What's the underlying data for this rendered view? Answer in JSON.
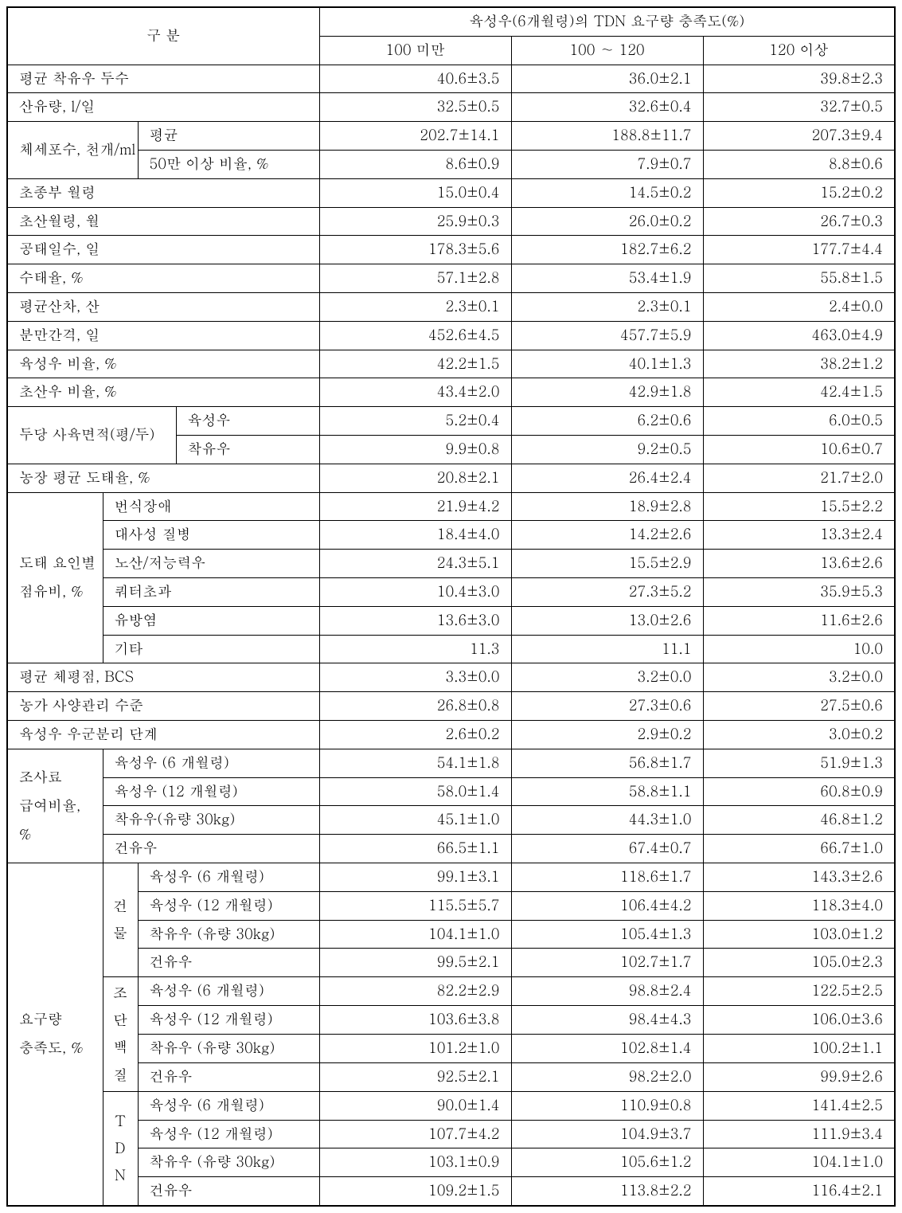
{
  "header": {
    "group_label": "구 분",
    "title": "육성우(6개월령)의 TDN 요구량 충족도(%)",
    "cols": [
      "100 미만",
      "100 ∼ 120",
      "120 이상"
    ]
  },
  "rows": [
    {
      "label": "평균 착유우 두수",
      "v": [
        "40.6±3.5",
        "36.0±2.1",
        "39.8±2.3"
      ]
    },
    {
      "label": "산유량, l/일",
      "v": [
        "32.5±0.5",
        "32.6±0.4",
        "32.7±0.5"
      ]
    }
  ],
  "scc": {
    "group": "체세포수, 천개/ml",
    "rows": [
      {
        "label": "평균",
        "v": [
          "202.7±14.1",
          "188.8±11.7",
          "207.3±9.4"
        ]
      },
      {
        "label": "50만 이상 비율, %",
        "v": [
          "8.6±0.9",
          "7.9±0.7",
          "8.8±0.6"
        ]
      }
    ]
  },
  "mid": [
    {
      "label": "초종부 월령",
      "v": [
        "15.0±0.4",
        "14.5±0.2",
        "15.2±0.2"
      ]
    },
    {
      "label": "초산월령, 월",
      "v": [
        "25.9±0.3",
        "26.0±0.2",
        "26.7±0.3"
      ]
    },
    {
      "label": "공태일수, 일",
      "v": [
        "178.3±5.6",
        "182.7±6.2",
        "177.7±4.4"
      ]
    },
    {
      "label": "수태율, %",
      "v": [
        "57.1±2.8",
        "53.4±1.9",
        "55.8±1.5"
      ]
    },
    {
      "label": "평균산차, 산",
      "v": [
        "2.3±0.1",
        "2.3±0.1",
        "2.4±0.0"
      ]
    },
    {
      "label": "분만간격, 일",
      "v": [
        "452.6±4.5",
        "457.7±5.9",
        "463.0±4.9"
      ]
    },
    {
      "label": "육성우 비율, %",
      "v": [
        "42.2±1.5",
        "40.1±1.3",
        "38.2±1.2"
      ]
    },
    {
      "label": "초산우 비율, %",
      "v": [
        "43.4±2.0",
        "42.9±1.8",
        "42.4±1.5"
      ]
    }
  ],
  "area": {
    "group": "두당 사육면적(평/두)",
    "rows": [
      {
        "label": "육성우",
        "v": [
          "5.2±0.4",
          "6.2±0.6",
          "6.0±0.5"
        ]
      },
      {
        "label": "착유우",
        "v": [
          "9.9±0.8",
          "9.2±0.5",
          "10.6±0.7"
        ]
      }
    ]
  },
  "cullrate": {
    "label": "농장 평균 도태율, %",
    "v": [
      "20.8±2.1",
      "26.4±2.4",
      "21.7±2.0"
    ]
  },
  "cull": {
    "group1": "도태 요인별",
    "group2": "점유비, %",
    "rows": [
      {
        "label": "번식장애",
        "v": [
          "21.9±4.2",
          "18.9±2.8",
          "15.5±2.2"
        ]
      },
      {
        "label": "대사성 질병",
        "v": [
          "18.4±4.0",
          "14.2±2.6",
          "13.3±2.4"
        ]
      },
      {
        "label": "노산/저능력우",
        "v": [
          "24.3±5.1",
          "15.5±2.9",
          "13.6±2.6"
        ]
      },
      {
        "label": "쿼터초과",
        "v": [
          "10.4±3.0",
          "27.3±5.2",
          "35.9±5.3"
        ]
      },
      {
        "label": "유방염",
        "v": [
          "13.6±3.0",
          "13.0±2.6",
          "11.6±2.6"
        ]
      },
      {
        "label": "기타",
        "v": [
          "11.3",
          "11.1",
          "10.0"
        ]
      }
    ]
  },
  "post": [
    {
      "label": "평균 체평점, BCS",
      "v": [
        "3.3±0.0",
        "3.2±0.0",
        "3.2±0.0"
      ]
    },
    {
      "label": "농가 사양관리 수준",
      "v": [
        "26.8±0.8",
        "27.3±0.6",
        "27.5±0.6"
      ]
    },
    {
      "label": "육성우 우군분리 단계",
      "v": [
        "2.6±0.2",
        "2.9±0.2",
        "3.0±0.2"
      ]
    }
  ],
  "forage": {
    "group1": "조사료",
    "group2": "급여비율, %",
    "rows": [
      {
        "label": "육성우 (6 개월령)",
        "v": [
          "54.1±1.8",
          "56.8±1.7",
          "51.9±1.3"
        ]
      },
      {
        "label": "육성우 (12 개월령)",
        "v": [
          "58.0±1.4",
          "58.8±1.1",
          "60.8±0.9"
        ]
      },
      {
        "label": "착유우(유량 30kg)",
        "v": [
          "45.1±1.0",
          "44.3±1.0",
          "46.8±1.2"
        ]
      },
      {
        "label": "건유우",
        "v": [
          "66.5±1.1",
          "67.4±0.7",
          "66.7±1.0"
        ]
      }
    ]
  },
  "req": {
    "group1": "요구량",
    "group2": "충족도, %",
    "dm": {
      "l1": "건",
      "l2": "물",
      "rows": [
        {
          "label": "육성우 (6 개월령)",
          "v": [
            "99.1±3.1",
            "118.6±1.7",
            "143.3±2.6"
          ]
        },
        {
          "label": "육성우 (12 개월령)",
          "v": [
            "115.5±5.7",
            "106.4±4.2",
            "118.3±4.0"
          ]
        },
        {
          "label": "착유우 (유량 30kg)",
          "v": [
            "104.1±1.0",
            "105.4±1.3",
            "103.0±1.2"
          ]
        },
        {
          "label": "건유우",
          "v": [
            "99.5±2.1",
            "102.7±1.7",
            "105.0±2.3"
          ]
        }
      ]
    },
    "cp": {
      "l1": "조",
      "l2": "단",
      "l3": "백",
      "l4": "질",
      "rows": [
        {
          "label": "육성우 (6 개월령)",
          "v": [
            "82.2±2.9",
            "98.8±2.4",
            "122.5±2.5"
          ]
        },
        {
          "label": "육성우 (12 개월령)",
          "v": [
            "103.6±3.8",
            "98.4±4.3",
            "106.0±3.6"
          ]
        },
        {
          "label": "착유우 (유량 30kg)",
          "v": [
            "101.2±1.0",
            "102.8±1.4",
            "100.2±1.1"
          ]
        },
        {
          "label": "건유우",
          "v": [
            "92.5±2.1",
            "98.2±2.0",
            "99.9±2.6"
          ]
        }
      ]
    },
    "tdn": {
      "l1": "T",
      "l2": "D",
      "l3": "N",
      "rows": [
        {
          "label": "육성우 (6 개월령)",
          "v": [
            "90.0±1.4",
            "110.9±0.8",
            "141.4±2.5"
          ]
        },
        {
          "label": "육성우 (12 개월령)",
          "v": [
            "107.7±4.2",
            "104.9±3.7",
            "111.9±3.4"
          ]
        },
        {
          "label": "착유우 (유량 30kg)",
          "v": [
            "103.1±0.9",
            "105.6±1.2",
            "104.1±1.0"
          ]
        },
        {
          "label": "건유우",
          "v": [
            "109.2±1.5",
            "113.8±2.2",
            "116.4±2.1"
          ]
        }
      ]
    }
  }
}
